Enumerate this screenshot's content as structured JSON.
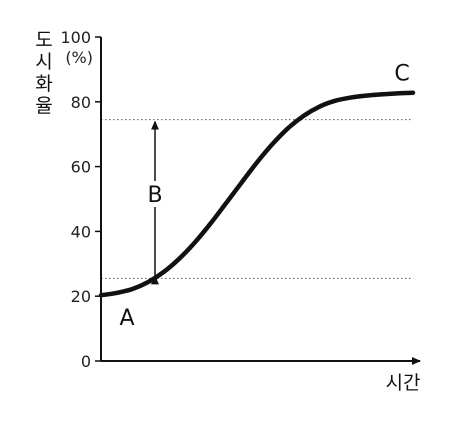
{
  "chart_data": {
    "type": "line",
    "ylabel": "도시화율",
    "y_unit": "(%)",
    "xlabel": "시간",
    "ylim": [
      0,
      100
    ],
    "yticks": [
      0,
      20,
      40,
      60,
      80,
      100
    ],
    "x_ticks_shown": false,
    "grid": false,
    "series": [
      {
        "x": [
          0,
          0.05,
          0.1,
          0.15,
          0.2,
          0.25,
          0.3,
          0.35,
          0.4,
          0.45,
          0.5,
          0.55,
          0.6,
          0.65,
          0.7,
          0.75,
          0.8,
          0.85,
          0.9,
          0.95,
          1.0
        ],
        "values": [
          20.3,
          21.0,
          22.2,
          24.3,
          27.4,
          31.5,
          36.5,
          42.3,
          48.6,
          55.0,
          61.3,
          67.0,
          71.9,
          75.7,
          78.5,
          80.3,
          81.3,
          81.9,
          82.3,
          82.6,
          82.8
        ]
      }
    ],
    "reference_lines": [
      {
        "y": 74.5,
        "style": "dotted"
      },
      {
        "y": 25.5,
        "style": "dotted"
      }
    ],
    "annotations": [
      {
        "text": "A",
        "x": 0.0,
        "y": 20.3
      },
      {
        "text": "C",
        "x": 1.0,
        "y": 82.8
      },
      {
        "text": "B",
        "from_y": 25.5,
        "to_y": 74.5,
        "arrow": "double"
      }
    ]
  }
}
